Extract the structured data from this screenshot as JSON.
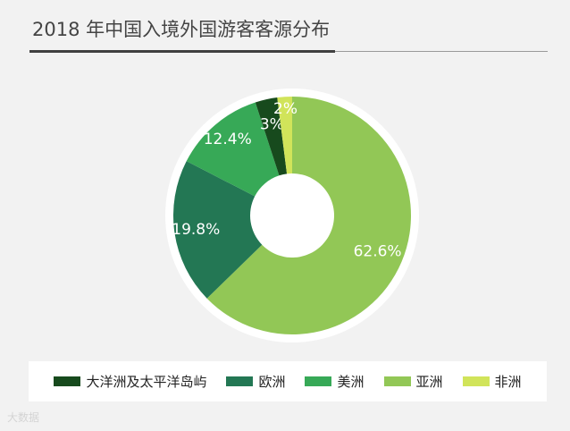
{
  "header": {
    "title": "2018 年中国入境外国游客客源分布"
  },
  "watermark": "大数据",
  "chart_data": {
    "type": "pie",
    "categories": [
      "亚洲",
      "欧洲",
      "美洲",
      "大洋洲及太平洋岛屿",
      "非洲"
    ],
    "values": [
      62.6,
      19.8,
      12.4,
      3,
      2
    ],
    "labels": [
      "62.6%",
      "19.8%",
      "12.4%",
      "3%",
      "2%"
    ],
    "colors": [
      "#92c756",
      "#237754",
      "#37a957",
      "#174a1d",
      "#d1e45a"
    ],
    "title": "2018 年中国入境外国游客客源分布",
    "legend_position": "bottom",
    "donut": true,
    "legend": [
      {
        "label": "大洋洲及太平洋岛屿",
        "color": "#174a1d"
      },
      {
        "label": "欧洲",
        "color": "#237754"
      },
      {
        "label": "美洲",
        "color": "#37a957"
      },
      {
        "label": "亚洲",
        "color": "#92c756"
      },
      {
        "label": "非洲",
        "color": "#d1e45a"
      }
    ]
  }
}
